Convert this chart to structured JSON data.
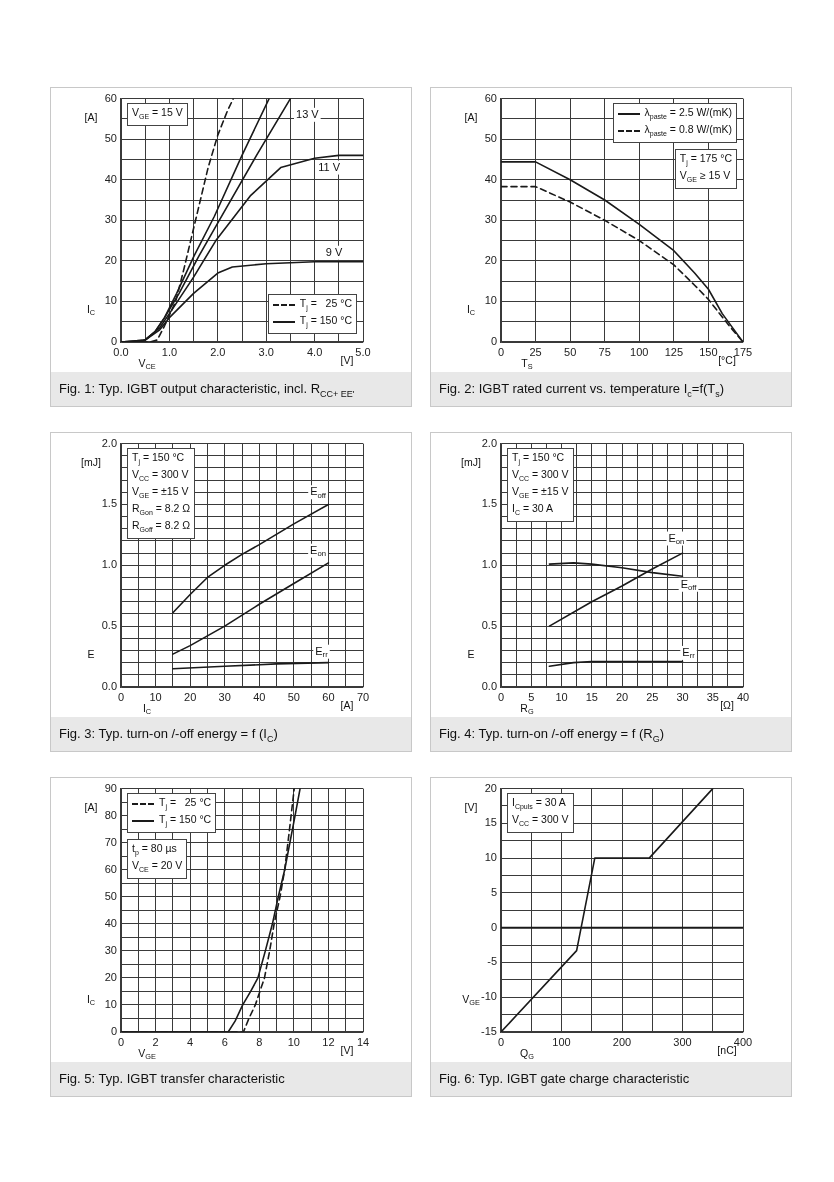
{
  "chart_data": [
    {
      "type": "line",
      "title": "Fig. 1: Typ. IGBT output characteristic, incl. R$_{CC+ EE'}$",
      "xlabel": "V$_{CE}$ [V]",
      "ylabel": "I$_{C}$ [A]",
      "xlim": [
        0,
        5
      ],
      "ylim": [
        0,
        60
      ],
      "grid": true,
      "legend": "bottom right",
      "marker": "none",
      "xticks": [
        {
          "value": 0,
          "label": "0.0"
        },
        {
          "value": 0.5,
          "label": null
        },
        {
          "value": 1,
          "label": "1.0"
        },
        {
          "value": 1.5,
          "label": null
        },
        {
          "value": 2,
          "label": "2.0"
        },
        {
          "value": 2.5,
          "label": null
        },
        {
          "value": 3,
          "label": "3.0"
        },
        {
          "value": 3.5,
          "label": null
        },
        {
          "value": 4,
          "label": "4.0"
        },
        {
          "value": 4.5,
          "label": null
        },
        {
          "value": 5,
          "label": "5.0"
        }
      ],
      "yticks": [
        0,
        {
          "value": 5,
          "label": null
        },
        10,
        {
          "value": 15,
          "label": null
        },
        20,
        {
          "value": 25,
          "label": null
        },
        30,
        {
          "value": 35,
          "label": null
        },
        40,
        {
          "value": 45,
          "label": null
        },
        50,
        {
          "value": 55,
          "label": null
        },
        60
      ],
      "series": [
        {
          "name": "T$_{j}$ =   25 °C",
          "color": "#1a1a1a",
          "line_style": "dashed",
          "x": [
            0,
            0.6,
            0.75,
            0.9,
            1.13,
            1.3,
            1.54,
            1.8,
            2.0,
            2.2,
            2.32
          ],
          "values": [
            0,
            0,
            0.5,
            4,
            10,
            18,
            30,
            43,
            51,
            57,
            60
          ]
        },
        {
          "name": "T$_{j}$ = 150 °C",
          "color": "#1a1a1a",
          "line_style": "solid",
          "x": [
            0,
            0.4,
            0.5,
            0.7,
            0.9,
            1.15,
            1.5,
            1.93,
            2.5,
            3.06
          ],
          "values": [
            0,
            0.1,
            0.5,
            2.5,
            6,
            12,
            21,
            31,
            46,
            60
          ]
        },
        {
          "color": "#1a1a1a",
          "line_style": "solid",
          "x": [
            0,
            0.4,
            0.5,
            0.7,
            0.9,
            1.2,
            1.6,
            2.03,
            2.8,
            3.5
          ],
          "values": [
            0,
            0.1,
            0.5,
            2.5,
            6,
            12,
            21,
            30,
            46,
            60
          ]
        },
        {
          "color": "#1a1a1a",
          "line_style": "solid",
          "x": [
            0,
            0.5,
            0.8,
            1.0,
            1.5,
            1.96,
            2.67,
            3.3,
            4.0,
            4.5,
            5.0
          ],
          "values": [
            0,
            0.5,
            3.5,
            7,
            16,
            25,
            36,
            43,
            45.3,
            46,
            46
          ]
        },
        {
          "color": "#1a1a1a",
          "line_style": "solid",
          "x": [
            0,
            0.5,
            0.8,
            1.0,
            1.5,
            2.0,
            2.3,
            3.0,
            4.0,
            5.0
          ],
          "values": [
            0,
            0.5,
            3,
            6,
            12,
            17,
            18.5,
            19.3,
            19.8,
            19.8
          ]
        }
      ],
      "annotations": [
        "V$_{GE}$ = 15 V",
        {
          "text": "13 V",
          "x": 3.85,
          "y": 56
        },
        {
          "text": "11 V",
          "x": 4.3,
          "y": 43
        },
        {
          "text": "9 V",
          "x": 4.4,
          "y": 22
        }
      ]
    },
    {
      "type": "line",
      "title": "Fig. 2: IGBT rated current vs. temperature I$_{c}$=f(T$_{s}$)",
      "xlabel": "T$_{S}$ [°C]",
      "ylabel": "I$_{C}$ [A]",
      "xlim": [
        0,
        175
      ],
      "ylim": [
        0,
        60
      ],
      "grid": true,
      "legend": "top right",
      "marker": "none",
      "xticks": [
        0,
        25,
        50,
        75,
        100,
        125,
        150,
        175
      ],
      "yticks": [
        0,
        {
          "value": 5,
          "label": null
        },
        10,
        {
          "value": 15,
          "label": null
        },
        20,
        {
          "value": 25,
          "label": null
        },
        30,
        {
          "value": 35,
          "label": null
        },
        40,
        {
          "value": 45,
          "label": null
        },
        50,
        {
          "value": 55,
          "label": null
        },
        60
      ],
      "series": [
        {
          "name": "λ$_{paste}$ = 2.5 W/(mK)",
          "color": "#1a1a1a",
          "line_style": "solid",
          "x": [
            0,
            25,
            50,
            75,
            100,
            125,
            140,
            150,
            160,
            175
          ],
          "values": [
            44.4,
            44.4,
            40,
            35,
            29,
            22.5,
            17,
            13,
            7,
            0
          ]
        },
        {
          "name": "λ$_{paste}$ = 0.8 W/(mK)",
          "color": "#1a1a1a",
          "line_style": "dashed",
          "x": [
            0,
            25,
            50,
            75,
            100,
            125,
            140,
            150,
            165,
            175
          ],
          "values": [
            38.3,
            38.3,
            34.5,
            30,
            25,
            19,
            14,
            10.5,
            4,
            0
          ]
        }
      ],
      "annotations": [
        "T$_{j}$ = 175 °C",
        "V$_{GE}$ ≥ 15 V"
      ]
    },
    {
      "type": "line",
      "title": "Fig. 3: Typ. turn-on /-off energy = f (I$_{C}$)",
      "xlabel": "I$_{C}$ [A]",
      "ylabel": "E [mJ]",
      "xlim": [
        0,
        70
      ],
      "ylim": [
        0,
        2
      ],
      "grid": true,
      "marker": "none",
      "xticks": [
        0,
        {
          "value": 5,
          "label": null
        },
        10,
        {
          "value": 15,
          "label": null
        },
        20,
        {
          "value": 25,
          "label": null
        },
        30,
        {
          "value": 35,
          "label": null
        },
        40,
        {
          "value": 45,
          "label": null
        },
        50,
        {
          "value": 55,
          "label": null
        },
        60,
        {
          "value": 65,
          "label": null
        },
        70
      ],
      "yticks": [
        {
          "value": 0,
          "label": "0.0"
        },
        {
          "value": 0.1,
          "label": null
        },
        {
          "value": 0.2,
          "label": null
        },
        {
          "value": 0.3,
          "label": null
        },
        {
          "value": 0.4,
          "label": null
        },
        {
          "value": 0.5,
          "label": "0.5"
        },
        {
          "value": 0.6,
          "label": null
        },
        {
          "value": 0.7,
          "label": null
        },
        {
          "value": 0.8,
          "label": null
        },
        {
          "value": 0.9,
          "label": null
        },
        {
          "value": 1,
          "label": "1.0"
        },
        {
          "value": 1.1,
          "label": null
        },
        {
          "value": 1.2,
          "label": null
        },
        {
          "value": 1.3,
          "label": null
        },
        {
          "value": 1.4,
          "label": null
        },
        {
          "value": 1.5,
          "label": "1.5"
        },
        {
          "value": 1.6,
          "label": null
        },
        {
          "value": 1.7,
          "label": null
        },
        {
          "value": 1.8,
          "label": null
        },
        {
          "value": 1.9,
          "label": null
        },
        {
          "value": 2,
          "label": "2.0"
        }
      ],
      "series": [
        {
          "color": "#1a1a1a",
          "line_style": "solid",
          "x": [
            15,
            20,
            25,
            30,
            35,
            40,
            50,
            60
          ],
          "values": [
            0.61,
            0.76,
            0.9,
            1.0,
            1.09,
            1.17,
            1.34,
            1.5
          ]
        },
        {
          "color": "#1a1a1a",
          "line_style": "solid",
          "x": [
            15,
            20,
            30,
            40,
            50,
            60
          ],
          "values": [
            0.27,
            0.34,
            0.5,
            0.68,
            0.85,
            1.02
          ]
        },
        {
          "color": "#1a1a1a",
          "line_style": "solid",
          "x": [
            15,
            30,
            45,
            60
          ],
          "values": [
            0.15,
            0.17,
            0.19,
            0.2
          ]
        }
      ],
      "annotations": [
        "T$_{j}$ = 150 °C",
        "V$_{CC}$ = 300 V",
        "V$_{GE}$ = ±15 V",
        "R$_{Gon}$ = 8.2 Ω",
        "R$_{Goff}$ = 8.2 Ω",
        {
          "text": "E$_{off}$",
          "x": 57,
          "y": 1.6
        },
        {
          "text": "E$_{on}$",
          "x": 57,
          "y": 1.12
        },
        {
          "text": "E$_{rr}$",
          "x": 58,
          "y": 0.29
        }
      ]
    },
    {
      "type": "line",
      "title": "Fig. 4: Typ. turn-on /-off energy = f (R$_{G}$)",
      "xlabel": "R$_{G}$ [Ω]",
      "ylabel": "E [mJ]",
      "xlim": [
        0,
        40
      ],
      "ylim": [
        0,
        2
      ],
      "grid": true,
      "marker": "none",
      "xticks": [
        0,
        {
          "value": 2.5,
          "label": null
        },
        5,
        {
          "value": 7.5,
          "label": null
        },
        10,
        {
          "value": 12.5,
          "label": null
        },
        15,
        {
          "value": 17.5,
          "label": null
        },
        20,
        {
          "value": 22.5,
          "label": null
        },
        25,
        {
          "value": 27.5,
          "label": null
        },
        30,
        {
          "value": 32.5,
          "label": null
        },
        35,
        {
          "value": 37.5,
          "label": null
        },
        40
      ],
      "yticks": [
        {
          "value": 0,
          "label": "0.0"
        },
        {
          "value": 0.1,
          "label": null
        },
        {
          "value": 0.2,
          "label": null
        },
        {
          "value": 0.3,
          "label": null
        },
        {
          "value": 0.4,
          "label": null
        },
        {
          "value": 0.5,
          "label": "0.5"
        },
        {
          "value": 0.6,
          "label": null
        },
        {
          "value": 0.7,
          "label": null
        },
        {
          "value": 0.8,
          "label": null
        },
        {
          "value": 0.9,
          "label": null
        },
        {
          "value": 1,
          "label": "1.0"
        },
        {
          "value": 1.1,
          "label": null
        },
        {
          "value": 1.2,
          "label": null
        },
        {
          "value": 1.3,
          "label": null
        },
        {
          "value": 1.4,
          "label": null
        },
        {
          "value": 1.5,
          "label": "1.5"
        },
        {
          "value": 1.6,
          "label": null
        },
        {
          "value": 1.7,
          "label": null
        },
        {
          "value": 1.8,
          "label": null
        },
        {
          "value": 1.9,
          "label": null
        },
        {
          "value": 2,
          "label": "2.0"
        }
      ],
      "series": [
        {
          "color": "#1a1a1a",
          "line_style": "solid",
          "x": [
            8,
            15,
            20,
            25,
            30
          ],
          "values": [
            0.5,
            0.7,
            0.83,
            0.97,
            1.1
          ]
        },
        {
          "color": "#1a1a1a",
          "line_style": "solid",
          "x": [
            8,
            12,
            15,
            20,
            25,
            30
          ],
          "values": [
            1.01,
            1.02,
            1.01,
            0.98,
            0.94,
            0.91
          ]
        },
        {
          "color": "#1a1a1a",
          "line_style": "solid",
          "x": [
            8,
            12,
            15,
            20,
            30
          ],
          "values": [
            0.17,
            0.2,
            0.21,
            0.21,
            0.21
          ]
        }
      ],
      "annotations": [
        "T$_{j}$ = 150 °C",
        "V$_{CC}$ = 300 V",
        "V$_{GE}$ = ±15 V",
        "I$_{C}$ = 30 A",
        {
          "text": "E$_{on}$",
          "x": 29,
          "y": 1.22
        },
        {
          "text": "E$_{off}$",
          "x": 31,
          "y": 0.84
        },
        {
          "text": "E$_{rr}$",
          "x": 31,
          "y": 0.28
        }
      ]
    },
    {
      "type": "line",
      "title": "Fig. 5: Typ. IGBT transfer characteristic",
      "xlabel": "V$_{GE}$ [V]",
      "ylabel": "I$_{C}$ [A]",
      "xlim": [
        0,
        14
      ],
      "ylim": [
        0,
        90
      ],
      "grid": true,
      "legend": "top left",
      "marker": "none",
      "xticks": [
        0,
        {
          "value": 1,
          "label": null
        },
        2,
        {
          "value": 3,
          "label": null
        },
        4,
        {
          "value": 5,
          "label": null
        },
        6,
        {
          "value": 7,
          "label": null
        },
        8,
        {
          "value": 9,
          "label": null
        },
        10,
        {
          "value": 11,
          "label": null
        },
        12,
        {
          "value": 13,
          "label": null
        },
        14
      ],
      "yticks": [
        0,
        {
          "value": 5,
          "label": null
        },
        10,
        {
          "value": 15,
          "label": null
        },
        20,
        {
          "value": 25,
          "label": null
        },
        30,
        {
          "value": 35,
          "label": null
        },
        40,
        {
          "value": 45,
          "label": null
        },
        50,
        {
          "value": 55,
          "label": null
        },
        60,
        {
          "value": 65,
          "label": null
        },
        70,
        {
          "value": 75,
          "label": null
        },
        80,
        {
          "value": 85,
          "label": null
        },
        90
      ],
      "series": [
        {
          "name": "T$_{j}$ =   25 °C",
          "color": "#1a1a1a",
          "line_style": "dashed",
          "x": [
            0,
            7.08,
            7.4,
            7.77,
            8.3,
            8.6,
            8.86,
            9.2,
            9.47,
            9.75,
            10.02
          ],
          "values": [
            0,
            0,
            5,
            10,
            20,
            30,
            40,
            50,
            60,
            75,
            90
          ]
        },
        {
          "name": "T$_{j}$ = 150 °C",
          "color": "#1a1a1a",
          "line_style": "solid",
          "x": [
            0,
            6.2,
            6.6,
            7.04,
            7.5,
            7.92,
            8.35,
            8.76,
            9.1,
            9.47,
            10.07,
            10.36
          ],
          "values": [
            0,
            0,
            4,
            10,
            15,
            20,
            30,
            40,
            50,
            60,
            80,
            90
          ]
        }
      ],
      "annotations": [
        "t$_{p}$ = 80 µs",
        "V$_{CE}$ = 20 V"
      ]
    },
    {
      "type": "line",
      "title": "Fig. 6: Typ. IGBT gate charge characteristic",
      "xlabel": "Q$_{G}$ [nC]",
      "ylabel": "V$_{GE}$ [V]",
      "xlim": [
        0,
        400
      ],
      "ylim": [
        -15,
        20
      ],
      "grid": true,
      "marker": "none",
      "xticks": [
        0,
        {
          "value": 50,
          "label": null
        },
        100,
        {
          "value": 150,
          "label": null
        },
        200,
        {
          "value": 250,
          "label": null
        },
        300,
        {
          "value": 350,
          "label": null
        },
        400
      ],
      "yticks": [
        -15,
        {
          "value": -12.5,
          "label": null
        },
        -10,
        {
          "value": -7.5,
          "label": null
        },
        -5,
        {
          "value": -2.5,
          "label": null
        },
        0,
        {
          "value": 2.5,
          "label": null
        },
        5,
        {
          "value": 7.5,
          "label": null
        },
        10,
        {
          "value": 12.5,
          "label": null
        },
        15,
        {
          "value": 17.5,
          "label": null
        },
        20
      ],
      "ref_lines": [
        {
          "axis": "y",
          "value": 0,
          "color": "#1a1a1a"
        }
      ],
      "series": [
        {
          "color": "#1a1a1a",
          "line_style": "solid",
          "x": [
            0,
            125,
            155,
            245,
            350
          ],
          "values": [
            -15,
            -3.3,
            10,
            10,
            20
          ]
        }
      ],
      "annotations": [
        "I$_{Cpuls}$ = 30 A",
        "V$_{CC}$ = 300 V"
      ]
    }
  ]
}
